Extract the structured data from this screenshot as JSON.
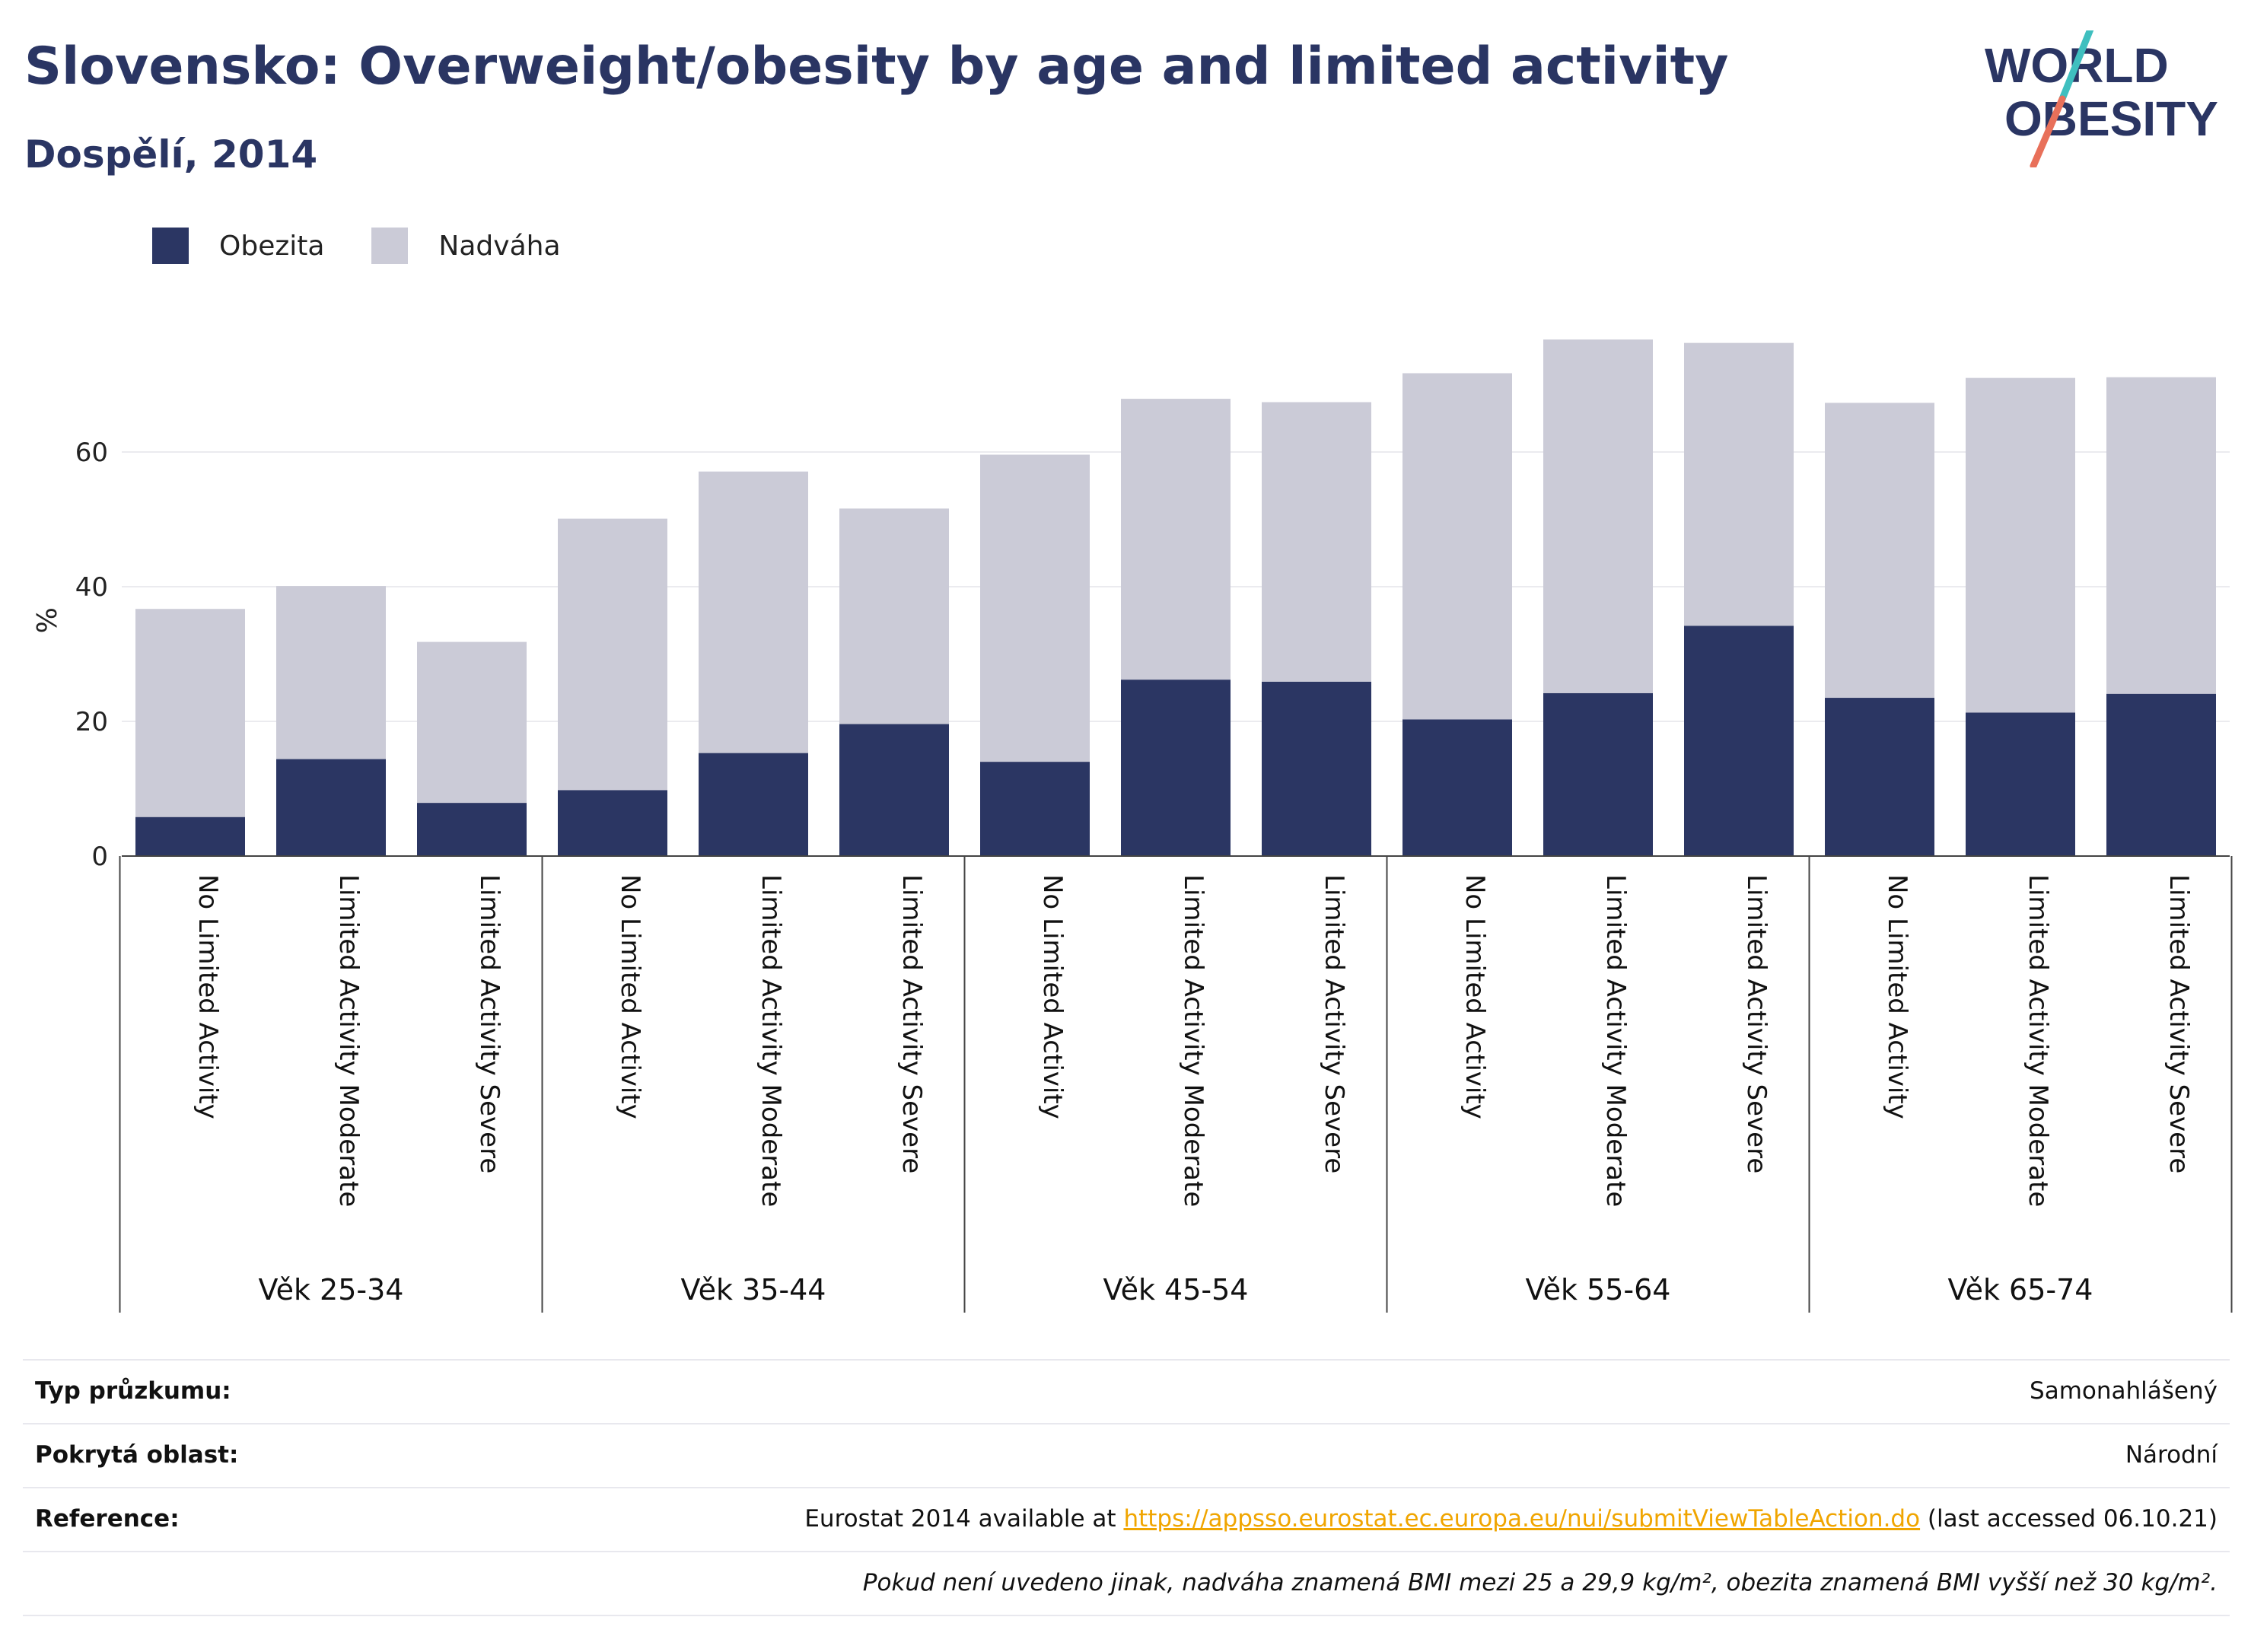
{
  "header": {
    "title": "Slovensko: Overweight/obesity by age and limited activity",
    "subtitle": "Dospělí, 2014"
  },
  "logo": {
    "line1": "WORLD",
    "line2": "OBESITY",
    "colors": {
      "text": "#2a3563",
      "slash_red": "#e8705a",
      "slash_teal": "#3fbfbf"
    }
  },
  "legend": [
    {
      "label": "Obezita",
      "color": "#2b3663"
    },
    {
      "label": "Nadváha",
      "color": "#cbcbd7"
    }
  ],
  "chart_data": {
    "type": "bar",
    "stacked": true,
    "ylabel": "%",
    "ylim": [
      0,
      80
    ],
    "yticks": [
      0,
      20,
      40,
      60
    ],
    "grid": true,
    "legend_position": "top-left",
    "groups": [
      {
        "label": "Věk 25-34",
        "categories": [
          "No Limited Activity",
          "Limited Activity Moderate",
          "Limited Activity Severe"
        ]
      },
      {
        "label": "Věk 35-44",
        "categories": [
          "No Limited Activity",
          "Limited Activity Moderate",
          "Limited Activity Severe"
        ]
      },
      {
        "label": "Věk 45-54",
        "categories": [
          "No Limited Activity",
          "Limited Activity Moderate",
          "Limited Activity Severe"
        ]
      },
      {
        "label": "Věk 55-64",
        "categories": [
          "No Limited Activity",
          "Limited Activity Moderate",
          "Limited Activity Severe"
        ]
      },
      {
        "label": "Věk 65-74",
        "categories": [
          "No Limited Activity",
          "Limited Activity Moderate",
          "Limited Activity Severe"
        ]
      }
    ],
    "series": [
      {
        "name": "Obezita",
        "color": "#2b3663",
        "values": [
          5.8,
          14.4,
          7.9,
          9.8,
          15.3,
          19.6,
          14.0,
          26.2,
          25.9,
          20.3,
          24.2,
          34.2,
          23.5,
          21.3,
          24.1
        ]
      },
      {
        "name": "Nadváha",
        "color": "#cbcbd7",
        "values": [
          30.9,
          25.7,
          23.9,
          40.3,
          41.8,
          32.0,
          45.6,
          41.7,
          41.5,
          51.4,
          52.5,
          42.0,
          43.8,
          49.7,
          47.0
        ]
      }
    ]
  },
  "footer": {
    "rows": [
      {
        "label": "Typ průzkumu:",
        "value": "Samonahlášený"
      },
      {
        "label": "Pokrytá oblast:",
        "value": "Národní"
      },
      {
        "label": "Reference:",
        "value_prefix": "Eurostat 2014 available at ",
        "link": "https://appsso.eurostat.ec.europa.eu/nui/submitViewTableAction.do",
        "value_suffix": " (last accessed 06.10.21)"
      },
      {
        "label": "",
        "note": "Pokud není uvedeno jinak, nadváha znamená BMI mezi 25 a 29,9 kg/m², obezita znamená BMI vyšší než 30 kg/m²."
      }
    ]
  }
}
